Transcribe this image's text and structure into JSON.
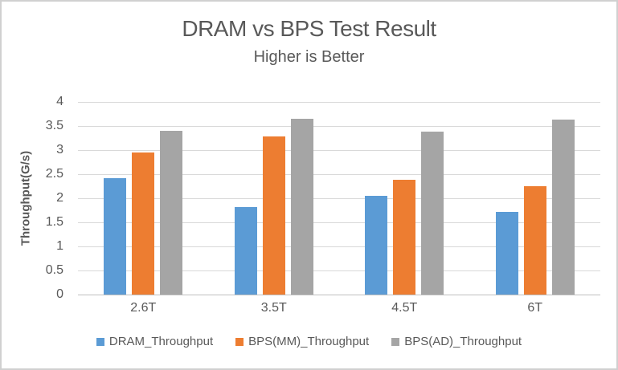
{
  "chart_data": {
    "type": "bar",
    "title": "DRAM vs BPS Test Result",
    "subtitle": "Higher is Better",
    "xlabel": "",
    "ylabel": "Throughput(G/s)",
    "categories": [
      "2.6T",
      "3.5T",
      "4.5T",
      "6T"
    ],
    "series": [
      {
        "name": "DRAM_Throughput",
        "color": "#5B9BD5",
        "values": [
          2.41,
          1.82,
          2.05,
          1.71
        ]
      },
      {
        "name": "BPS(MM)_Throughput",
        "color": "#ED7D31",
        "values": [
          2.95,
          3.28,
          2.38,
          2.25
        ]
      },
      {
        "name": "BPS(AD)_Throughput",
        "color": "#A5A5A5",
        "values": [
          3.4,
          3.65,
          3.38,
          3.63
        ]
      }
    ],
    "ylim": [
      0,
      4
    ],
    "yticks": [
      0,
      0.5,
      1,
      1.5,
      2,
      2.5,
      3,
      3.5,
      4
    ],
    "yticklabels": [
      "0",
      "0.5",
      "1",
      "1.5",
      "2",
      "2.5",
      "3",
      "3.5",
      "4"
    ],
    "grid": true,
    "legend_position": "bottom"
  },
  "colors": {
    "text": "#595959",
    "gridline": "#D9D9D9",
    "axis_line": "#BFBFBF",
    "frame_border": "#D0D0D0",
    "background": "#FFFFFF"
  }
}
